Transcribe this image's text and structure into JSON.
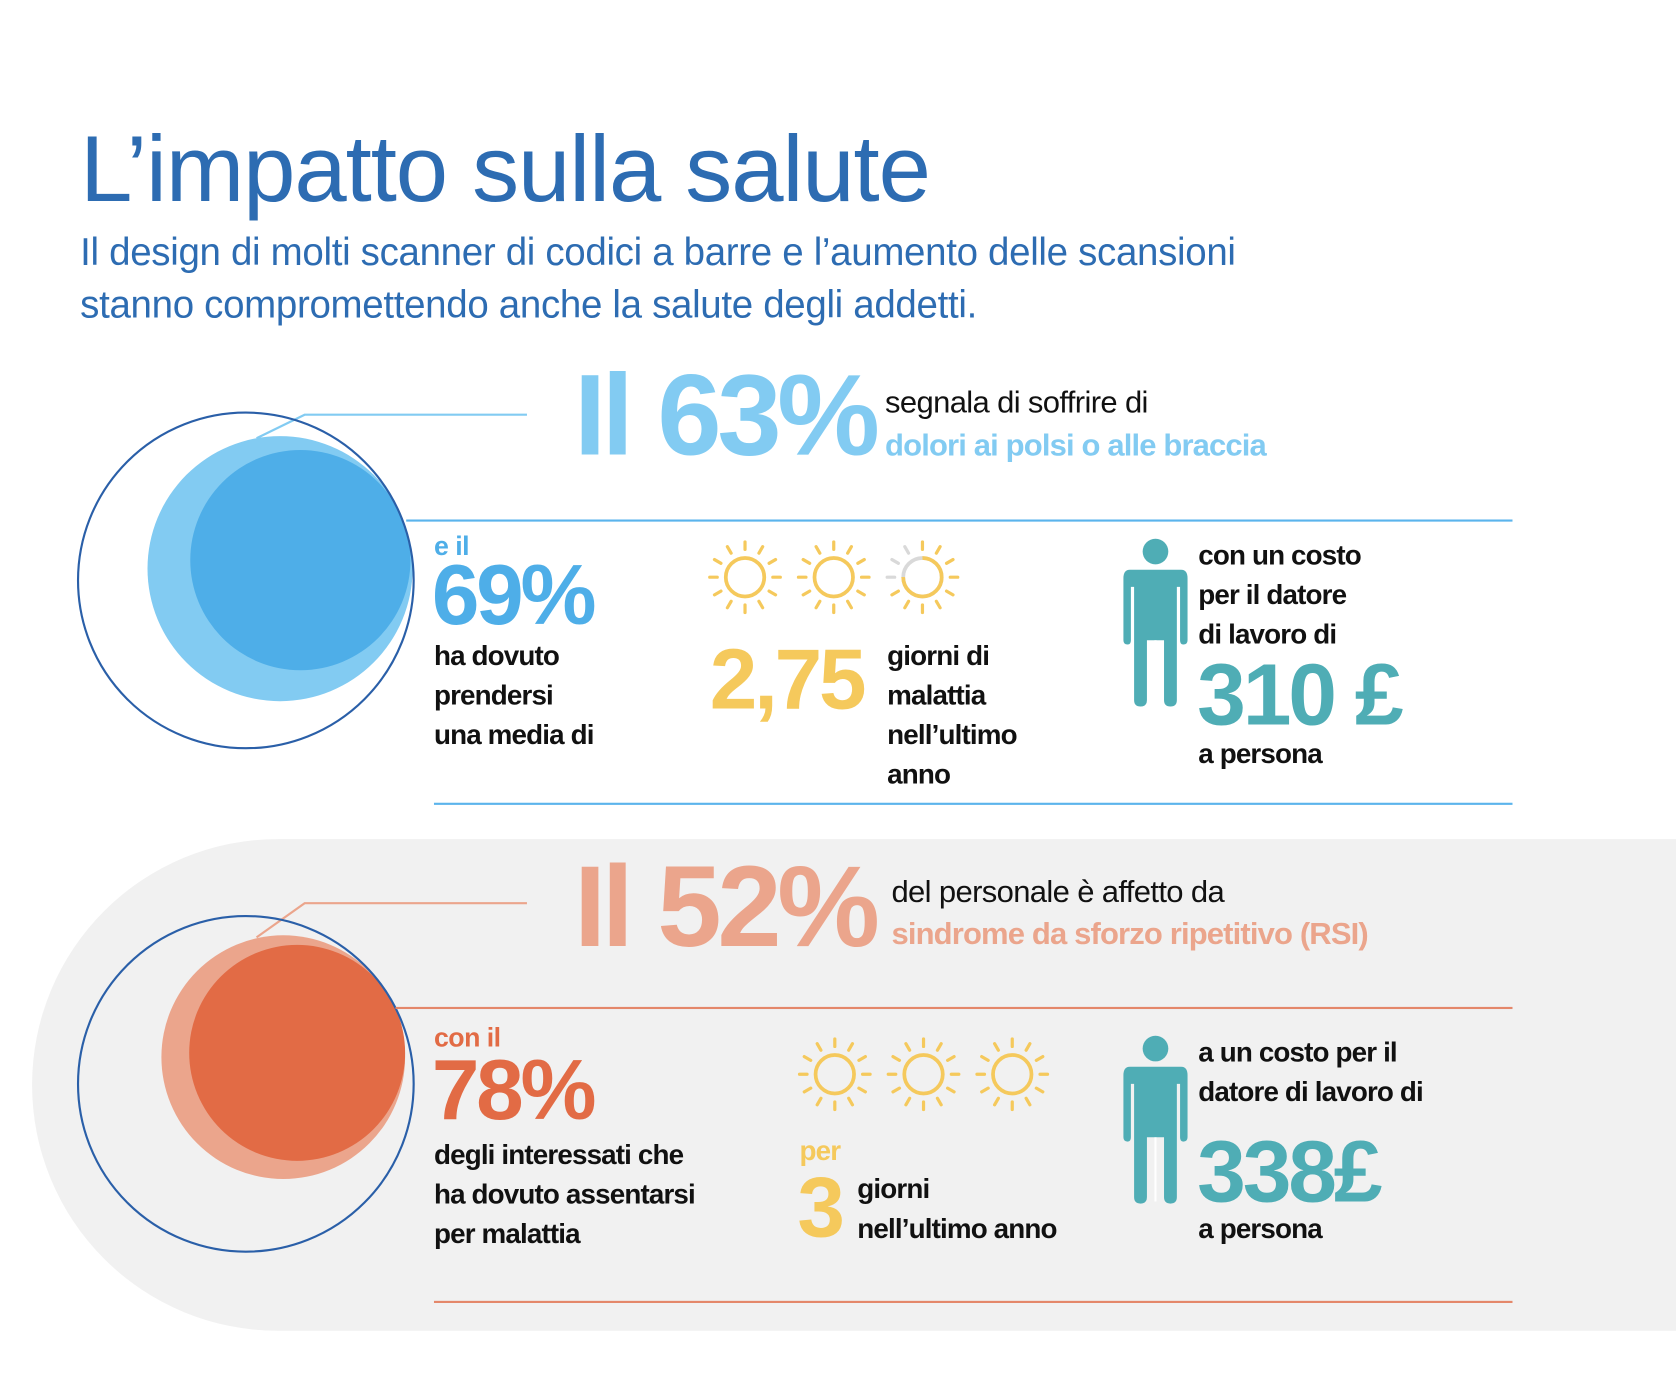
{
  "header": {
    "title": "L’impatto sulla salute",
    "subtitle_lines": [
      "Il design di molti scanner di codici a barre e l’aumento delle scansioni",
      "stanno compromettendo anche la salute degli addetti."
    ]
  },
  "colors": {
    "title_blue": "#2d6cb2",
    "light_blue": "#82cbf2",
    "mid_blue": "#4eaee8",
    "salmon": "#eba58c",
    "orange": "#e26b45",
    "yellow": "#f5c95c",
    "teal": "#4fadb5",
    "band_grey": "#f1f1f1"
  },
  "section1": {
    "headline": "Il 63%",
    "lead_line1": "segnala di soffrire di",
    "lead_line2": "dolori ai polsi o alle braccia",
    "intro": "e il",
    "percent": "69%",
    "desc_lines": [
      "ha dovuto",
      "prendersi",
      "una media di"
    ],
    "days_value": "2,75",
    "days_fraction": 2.75,
    "days_lines": [
      "giorni di",
      "malattia",
      "nell’ultimo",
      "anno"
    ],
    "cost_lines": [
      "con un costo",
      "per il datore",
      "di lavoro di"
    ],
    "cost_value": "310 £",
    "cost_suffix": "a persona"
  },
  "section2": {
    "headline": "Il 52%",
    "lead_line1": "del personale è affetto da",
    "lead_line2": "sindrome da sforzo ripetitivo (RSI)",
    "intro": "con il",
    "percent": "78%",
    "desc_lines": [
      "degli interessati che",
      "ha dovuto assentarsi",
      "per malattia"
    ],
    "days_prefix": "per",
    "days_value": "3",
    "days_fraction": 3,
    "days_lines": [
      "giorni",
      "nell’ultimo anno"
    ],
    "cost_lines": [
      "a un costo per il",
      "datore di lavoro di"
    ],
    "cost_value": "338£",
    "cost_suffix": "a persona"
  }
}
